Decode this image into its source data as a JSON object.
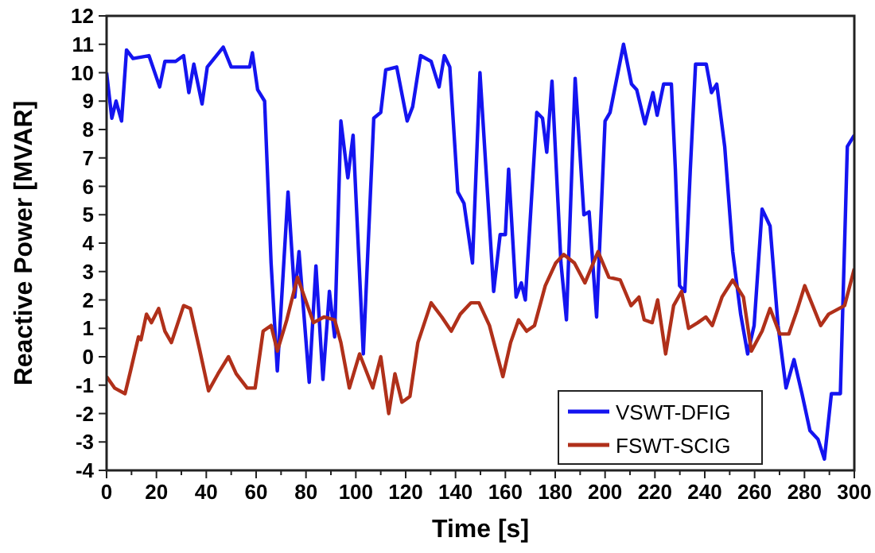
{
  "chart_data": {
    "type": "line",
    "xlabel": "Time [s]",
    "ylabel": "Reactive Power [MVAR]",
    "xlim": [
      0,
      300
    ],
    "ylim": [
      -4,
      12
    ],
    "xticks": [
      0,
      {
        "value": 10,
        "label": null
      },
      20,
      {
        "value": 30,
        "label": null
      },
      40,
      {
        "value": 50,
        "label": null
      },
      60,
      {
        "value": 70,
        "label": null
      },
      80,
      {
        "value": 90,
        "label": null
      },
      100,
      {
        "value": 110,
        "label": null
      },
      120,
      {
        "value": 130,
        "label": null
      },
      140,
      {
        "value": 150,
        "label": null
      },
      160,
      {
        "value": 170,
        "label": null
      },
      180,
      {
        "value": 190,
        "label": null
      },
      200,
      {
        "value": 210,
        "label": null
      },
      220,
      {
        "value": 230,
        "label": null
      },
      240,
      {
        "value": 250,
        "label": null
      },
      260,
      {
        "value": 270,
        "label": null
      },
      280,
      {
        "value": 290,
        "label": null
      },
      300
    ],
    "yticks": [
      -4,
      -3,
      -2,
      -1,
      0,
      1,
      2,
      3,
      4,
      5,
      6,
      7,
      8,
      9,
      10,
      11,
      12
    ],
    "grid": false,
    "legend": "bottom right",
    "line_style": "solid",
    "marker": "none",
    "series": [
      {
        "name": "VSWT-DFIG",
        "color": "#1414f0",
        "x": [
          0,
          2.1,
          3.8,
          6,
          8,
          10.6,
          17,
          21.3,
          23.4,
          27.7,
          30.9,
          33,
          35,
          38.3,
          40.4,
          46.8,
          50,
          57.4,
          58.5,
          60.6,
          63.4,
          66,
          68.5,
          72.8,
          75.5,
          77.2,
          81.3,
          84,
          86.8,
          89.4,
          91.5,
          94,
          96.8,
          98.9,
          103,
          107.2,
          110,
          112,
          116.4,
          120.6,
          122.8,
          126,
          130.2,
          133.4,
          135.5,
          137.7,
          140.9,
          143.4,
          146.8,
          149.8,
          155.3,
          157.9,
          160,
          161.3,
          164.3,
          166.4,
          168,
          172.6,
          174.9,
          176.6,
          178.7,
          182.3,
          184.5,
          188,
          191.5,
          193.6,
          196.6,
          200,
          202,
          207.4,
          210.6,
          212.7,
          216,
          219.2,
          220.9,
          223.5,
          226.6,
          228.2,
          229.9,
          232,
          234.2,
          236.3,
          240.6,
          242.7,
          244.8,
          248,
          251.2,
          254.4,
          257.2,
          259.8,
          263,
          266.2,
          269.4,
          272.6,
          275.8,
          279,
          282.2,
          285.4,
          288,
          290.8,
          294.4,
          297.2,
          300
        ],
        "values": [
          10,
          8.4,
          9,
          8.3,
          10.8,
          10.5,
          10.6,
          9.5,
          10.4,
          10.4,
          10.6,
          9.3,
          10.3,
          8.9,
          10.2,
          10.9,
          10.2,
          10.2,
          10.7,
          9.4,
          9,
          3.3,
          -0.5,
          5.8,
          2.1,
          3.7,
          -0.9,
          3.2,
          -0.8,
          2.3,
          0.7,
          8.3,
          6.3,
          7.8,
          0.1,
          8.4,
          8.6,
          10.1,
          10.2,
          8.3,
          8.8,
          10.6,
          10.4,
          9.5,
          10.6,
          10.2,
          5.8,
          5.4,
          3.3,
          10,
          2.3,
          4.3,
          4.3,
          6.6,
          2.1,
          2.6,
          2,
          8.6,
          8.4,
          7.2,
          9.7,
          3.3,
          1.3,
          9.8,
          5,
          5.1,
          1.4,
          8.3,
          8.6,
          11,
          9.6,
          9.4,
          8.2,
          9.3,
          8.5,
          9.6,
          9.6,
          6.6,
          2.5,
          2.3,
          6.6,
          10.3,
          10.3,
          9.3,
          9.6,
          7.4,
          3.7,
          1.5,
          0.1,
          1.1,
          5.2,
          4.6,
          1.1,
          -1.1,
          -0.1,
          -1.3,
          -2.6,
          -2.9,
          -3.6,
          -1.3,
          -1.3,
          7.4,
          7.8
        ]
      },
      {
        "name": "FSWT-SCIG",
        "color": "#b0301a",
        "x": [
          0,
          3.2,
          7.4,
          9.6,
          12.8,
          13.8,
          16,
          18,
          20.9,
          23.4,
          26,
          30.9,
          33.6,
          37.2,
          40.9,
          44.7,
          48.9,
          52,
          56.4,
          59.6,
          62.8,
          66,
          68.5,
          72.3,
          76.6,
          79.8,
          83,
          87.2,
          91.5,
          94,
          97.4,
          101.5,
          106.8,
          110,
          113.2,
          115.7,
          118.5,
          121.7,
          124.9,
          130.2,
          134.5,
          138.3,
          141.9,
          146.2,
          149.4,
          153.6,
          159,
          162.1,
          165.3,
          168.5,
          171.7,
          176,
          180.2,
          183.4,
          187.7,
          191.9,
          197.2,
          201.5,
          206.1,
          210.4,
          213.6,
          215.7,
          218.9,
          221.1,
          224.3,
          227.5,
          230.7,
          233.5,
          237.2,
          240.4,
          243,
          246.9,
          251.2,
          255.5,
          258.7,
          263,
          266.2,
          270.1,
          273.7,
          276.9,
          280.1,
          283.3,
          286.5,
          289.7,
          296.1,
          300
        ],
        "values": [
          -0.7,
          -1.1,
          -1.3,
          -0.5,
          0.7,
          0.6,
          1.5,
          1.2,
          1.7,
          0.9,
          0.5,
          1.8,
          1.7,
          0.3,
          -1.2,
          -0.6,
          0,
          -0.6,
          -1.1,
          -1.1,
          0.9,
          1.1,
          0.2,
          1.3,
          2.8,
          2,
          1.2,
          1.4,
          1.3,
          0.5,
          -1.1,
          0.1,
          -1.1,
          0,
          -2,
          -0.6,
          -1.6,
          -1.4,
          0.5,
          1.9,
          1.4,
          0.9,
          1.5,
          1.9,
          1.9,
          1.1,
          -0.7,
          0.5,
          1.3,
          0.9,
          1.1,
          2.5,
          3.3,
          3.6,
          3.3,
          2.6,
          3.7,
          2.8,
          2.7,
          1.8,
          2.1,
          1.3,
          1.2,
          2,
          0.1,
          1.8,
          2.3,
          1,
          1.2,
          1.4,
          1.1,
          2.1,
          2.7,
          2.1,
          0.2,
          0.9,
          1.7,
          0.8,
          0.8,
          1.6,
          2.5,
          1.8,
          1.1,
          1.5,
          1.8,
          3.1
        ]
      }
    ]
  }
}
